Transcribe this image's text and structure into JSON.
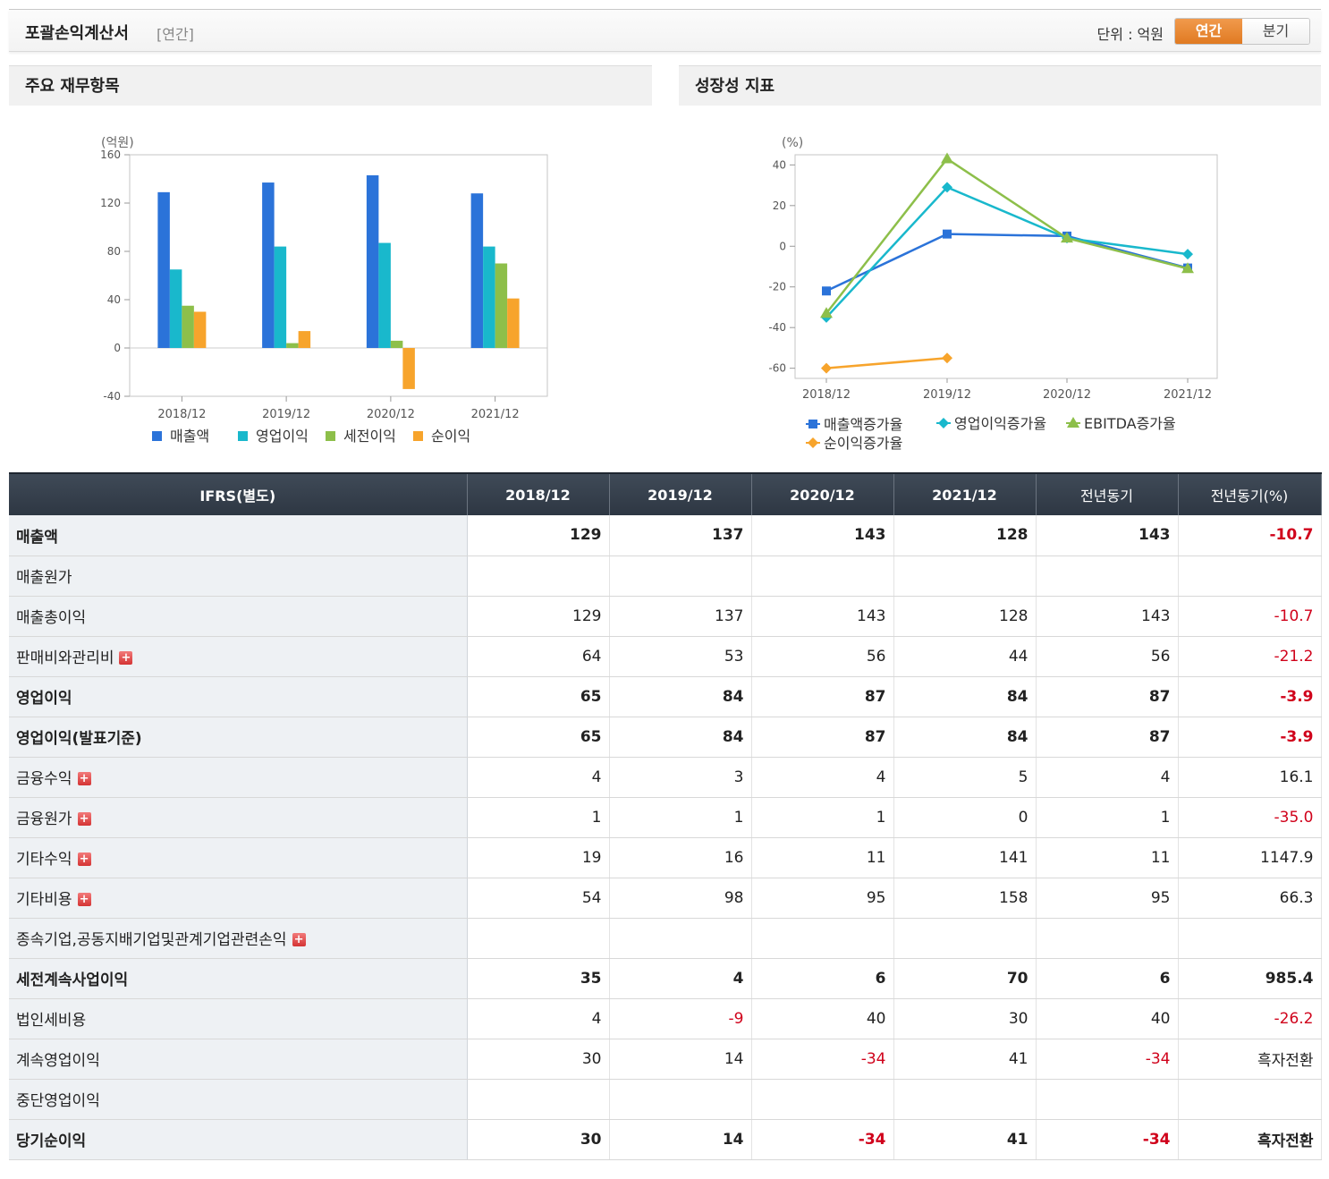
{
  "header": {
    "title": "포괄손익계산서",
    "period_tag": "[연간]",
    "unit": "단위 : 억원",
    "tab_annual": "연간",
    "tab_quarter": "분기"
  },
  "panels": {
    "left_title": "주요 재무항목",
    "right_title": "성장성 지표"
  },
  "chart_data": [
    {
      "type": "bar",
      "title": "",
      "ylabel": "(억원)",
      "ylim": [
        -40,
        160
      ],
      "yticks": [
        160,
        120,
        80,
        40,
        0,
        -40
      ],
      "categories": [
        "2018/12",
        "2019/12",
        "2020/12",
        "2021/12"
      ],
      "series": [
        {
          "name": "매출액",
          "color": "#2b73d9",
          "values": [
            129,
            137,
            143,
            128
          ]
        },
        {
          "name": "영업이익",
          "color": "#19b8cc",
          "values": [
            65,
            84,
            87,
            84
          ]
        },
        {
          "name": "세전이익",
          "color": "#8dbf4a",
          "values": [
            35,
            4,
            6,
            70
          ]
        },
        {
          "name": "순이익",
          "color": "#f7a42c",
          "values": [
            30,
            14,
            -34,
            41
          ]
        }
      ],
      "grid": false,
      "legend": "bottom"
    },
    {
      "type": "line",
      "title": "",
      "ylabel": "(%)",
      "ylim": [
        -65,
        45
      ],
      "yticks": [
        40,
        20,
        0,
        -20,
        -40,
        -60
      ],
      "categories": [
        "2018/12",
        "2019/12",
        "2020/12",
        "2021/12"
      ],
      "series": [
        {
          "name": "매출액증가율",
          "color": "#2b73d9",
          "marker": "square",
          "values": [
            -22,
            6,
            5,
            -10.7
          ]
        },
        {
          "name": "영업이익증가율",
          "color": "#19b8cc",
          "marker": "diamond",
          "values": [
            -35,
            29,
            4,
            -3.9
          ]
        },
        {
          "name": "EBITDA증가율",
          "color": "#8dbf4a",
          "marker": "triangle",
          "values": [
            -33,
            43,
            4,
            -11
          ]
        },
        {
          "name": "순이익증가율",
          "color": "#f7a42c",
          "marker": "diamond",
          "values": [
            -60,
            -55,
            null,
            null
          ]
        }
      ],
      "grid": false,
      "legend": "bottom"
    }
  ],
  "table": {
    "headers": [
      "IFRS(별도)",
      "2018/12",
      "2019/12",
      "2020/12",
      "2021/12",
      "전년동기",
      "전년동기(%)"
    ],
    "rows": [
      {
        "label": "매출액",
        "bold": true,
        "plus": false,
        "values": [
          "129",
          "137",
          "143",
          "128",
          "143",
          "-10.7"
        ]
      },
      {
        "label": "매출원가",
        "bold": false,
        "plus": false,
        "values": [
          "",
          "",
          "",
          "",
          "",
          ""
        ]
      },
      {
        "label": "매출총이익",
        "bold": false,
        "plus": false,
        "values": [
          "129",
          "137",
          "143",
          "128",
          "143",
          "-10.7"
        ]
      },
      {
        "label": "판매비와관리비",
        "bold": false,
        "plus": true,
        "values": [
          "64",
          "53",
          "56",
          "44",
          "56",
          "-21.2"
        ]
      },
      {
        "label": "영업이익",
        "bold": true,
        "plus": false,
        "values": [
          "65",
          "84",
          "87",
          "84",
          "87",
          "-3.9"
        ]
      },
      {
        "label": "영업이익(발표기준)",
        "bold": true,
        "plus": false,
        "values": [
          "65",
          "84",
          "87",
          "84",
          "87",
          "-3.9"
        ]
      },
      {
        "label": "금융수익",
        "bold": false,
        "plus": true,
        "values": [
          "4",
          "3",
          "4",
          "5",
          "4",
          "16.1"
        ]
      },
      {
        "label": "금융원가",
        "bold": false,
        "plus": true,
        "values": [
          "1",
          "1",
          "1",
          "0",
          "1",
          "-35.0"
        ]
      },
      {
        "label": "기타수익",
        "bold": false,
        "plus": true,
        "values": [
          "19",
          "16",
          "11",
          "141",
          "11",
          "1147.9"
        ]
      },
      {
        "label": "기타비용",
        "bold": false,
        "plus": true,
        "values": [
          "54",
          "98",
          "95",
          "158",
          "95",
          "66.3"
        ]
      },
      {
        "label": "종속기업,공동지배기업및관계기업관련손익",
        "bold": false,
        "plus": true,
        "values": [
          "",
          "",
          "",
          "",
          "",
          ""
        ]
      },
      {
        "label": "세전계속사업이익",
        "bold": true,
        "plus": false,
        "values": [
          "35",
          "4",
          "6",
          "70",
          "6",
          "985.4"
        ]
      },
      {
        "label": "법인세비용",
        "bold": false,
        "plus": false,
        "values": [
          "4",
          "-9",
          "40",
          "30",
          "40",
          "-26.2"
        ]
      },
      {
        "label": "계속영업이익",
        "bold": false,
        "plus": false,
        "values": [
          "30",
          "14",
          "-34",
          "41",
          "-34",
          "흑자전환"
        ]
      },
      {
        "label": "중단영업이익",
        "bold": false,
        "plus": false,
        "values": [
          "",
          "",
          "",
          "",
          "",
          ""
        ]
      },
      {
        "label": "당기순이익",
        "bold": true,
        "plus": false,
        "values": [
          "30",
          "14",
          "-34",
          "41",
          "-34",
          "흑자전환"
        ]
      }
    ]
  }
}
